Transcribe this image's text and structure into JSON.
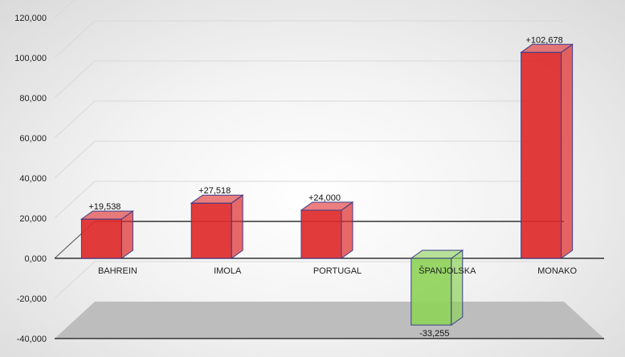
{
  "chart_data": {
    "type": "bar",
    "categories": [
      "BAHREIN",
      "IMOLA",
      "PORTUGAL",
      "ŠPANJOLSKA",
      "MONAKO"
    ],
    "values": [
      19538,
      27518,
      24000,
      -33255,
      102678
    ],
    "data_labels": [
      "+19,538",
      "+27,518",
      "+24,000",
      "-33,255",
      "+102,678"
    ],
    "y_ticks": [
      "-40,000",
      "-20,000",
      "0,000",
      "20,000",
      "40,000",
      "60,000",
      "80,000",
      "100,000",
      "120,000"
    ],
    "ylim": [
      -40000,
      120000
    ],
    "grid": true,
    "legend": "none",
    "colors": {
      "positive": "#e02a2a",
      "negative": "#8ed35a",
      "edge": "#3d3d8c"
    }
  }
}
